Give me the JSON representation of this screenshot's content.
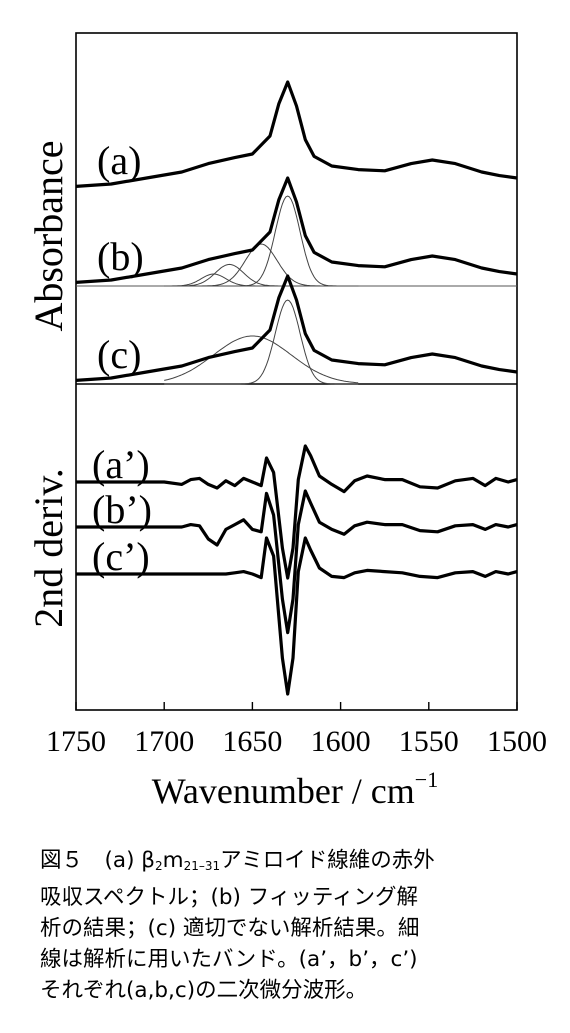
{
  "chart_data": {
    "type": "line",
    "xlabel": "Wavenumber / cm",
    "xlabel_sup": "−1",
    "xlim": [
      1750,
      1500
    ],
    "x_reversed": true,
    "xticks": [
      1750,
      1700,
      1650,
      1600,
      1550,
      1500
    ],
    "ylabel_top": "Absorbance",
    "ylabel_bottom": "2nd deriv.",
    "panels": [
      {
        "name": "Absorbance",
        "series": [
          {
            "label": "(a)",
            "x": [
              1750,
              1730,
              1710,
              1690,
              1675,
              1660,
              1650,
              1640,
              1635,
              1630,
              1625,
              1620,
              1615,
              1605,
              1590,
              1575,
              1560,
              1548,
              1535,
              1520,
              1510,
              1500
            ],
            "y": [
              0.03,
              0.05,
              0.1,
              0.15,
              0.22,
              0.27,
              0.3,
              0.45,
              0.72,
              0.9,
              0.7,
              0.42,
              0.28,
              0.2,
              0.17,
              0.16,
              0.22,
              0.25,
              0.22,
              0.15,
              0.12,
              0.1
            ]
          },
          {
            "label": "(b)",
            "x": [
              1750,
              1730,
              1710,
              1690,
              1675,
              1660,
              1650,
              1640,
              1635,
              1630,
              1625,
              1620,
              1615,
              1605,
              1590,
              1575,
              1560,
              1548,
              1535,
              1520,
              1510,
              1500
            ],
            "y": [
              0.03,
              0.05,
              0.1,
              0.15,
              0.22,
              0.27,
              0.3,
              0.45,
              0.72,
              0.9,
              0.7,
              0.42,
              0.28,
              0.2,
              0.17,
              0.16,
              0.22,
              0.25,
              0.22,
              0.15,
              0.12,
              0.1
            ],
            "bands": [
              {
                "center": 1630,
                "height": 0.75,
                "width": 7
              },
              {
                "center": 1645,
                "height": 0.35,
                "width": 9
              },
              {
                "center": 1663,
                "height": 0.18,
                "width": 8
              },
              {
                "center": 1672,
                "height": 0.1,
                "width": 7
              }
            ]
          },
          {
            "label": "(c)",
            "x": [
              1750,
              1730,
              1710,
              1690,
              1675,
              1660,
              1650,
              1640,
              1635,
              1630,
              1625,
              1620,
              1615,
              1605,
              1590,
              1575,
              1560,
              1548,
              1535,
              1520,
              1510,
              1500
            ],
            "y": [
              0.03,
              0.05,
              0.1,
              0.15,
              0.22,
              0.27,
              0.3,
              0.45,
              0.72,
              0.9,
              0.7,
              0.42,
              0.28,
              0.2,
              0.17,
              0.16,
              0.22,
              0.25,
              0.22,
              0.15,
              0.12,
              0.1
            ],
            "bands": [
              {
                "center": 1630,
                "height": 0.7,
                "width": 7
              },
              {
                "center": 1650,
                "height": 0.4,
                "width": 22
              }
            ]
          }
        ]
      },
      {
        "name": "2nd deriv.",
        "series": [
          {
            "label": "(a’)",
            "x": [
              1750,
              1720,
              1700,
              1690,
              1685,
              1680,
              1675,
              1670,
              1665,
              1660,
              1655,
              1650,
              1645,
              1642,
              1638,
              1633,
              1630,
              1627,
              1624,
              1620,
              1617,
              1612,
              1605,
              1598,
              1592,
              1585,
              1575,
              1565,
              1555,
              1545,
              1535,
              1525,
              1518,
              1512,
              1505,
              1500
            ],
            "y": [
              0,
              0,
              0,
              -0.02,
              0.02,
              0.03,
              -0.02,
              -0.05,
              0.01,
              -0.03,
              0.03,
              0,
              -0.03,
              0.2,
              0.08,
              -0.55,
              -0.8,
              -0.55,
              0.02,
              0.3,
              0.22,
              0.05,
              -0.02,
              -0.08,
              0.01,
              0.05,
              0.02,
              0.02,
              -0.04,
              -0.05,
              0.01,
              0.03,
              -0.03,
              0.03,
              0,
              0.02
            ]
          },
          {
            "label": "(b’)",
            "x": [
              1750,
              1720,
              1700,
              1690,
              1685,
              1680,
              1675,
              1670,
              1665,
              1660,
              1655,
              1650,
              1645,
              1642,
              1638,
              1633,
              1630,
              1627,
              1624,
              1620,
              1617,
              1612,
              1605,
              1598,
              1592,
              1585,
              1575,
              1565,
              1555,
              1545,
              1535,
              1525,
              1518,
              1512,
              1505,
              1500
            ],
            "y": [
              0,
              0,
              0,
              0,
              0.02,
              0.01,
              -0.1,
              -0.15,
              -0.02,
              0.02,
              0.06,
              -0.02,
              -0.04,
              0.28,
              0.1,
              -0.6,
              -0.88,
              -0.6,
              0.02,
              0.3,
              0.2,
              0.04,
              -0.02,
              -0.06,
              0.01,
              0.04,
              0.02,
              0.02,
              -0.03,
              -0.04,
              0.01,
              0.02,
              -0.02,
              0.02,
              0,
              0.02
            ]
          },
          {
            "label": "(c’)",
            "x": [
              1750,
              1720,
              1700,
              1690,
              1685,
              1680,
              1675,
              1670,
              1665,
              1660,
              1655,
              1650,
              1645,
              1642,
              1638,
              1633,
              1630,
              1627,
              1624,
              1620,
              1617,
              1612,
              1605,
              1598,
              1592,
              1585,
              1575,
              1565,
              1555,
              1545,
              1535,
              1525,
              1518,
              1512,
              1505,
              1500
            ],
            "y": [
              0,
              0,
              0,
              0,
              0,
              0,
              0,
              0,
              0,
              0.01,
              0.02,
              0,
              -0.03,
              0.3,
              0.15,
              -0.7,
              -1.0,
              -0.7,
              0.02,
              0.3,
              0.2,
              0.05,
              -0.02,
              -0.03,
              0.01,
              0.03,
              0.02,
              0.01,
              -0.02,
              -0.03,
              0.01,
              0.02,
              -0.02,
              0.02,
              0,
              0.02
            ]
          }
        ]
      }
    ],
    "grid": false,
    "legend": "none"
  },
  "caption": {
    "lines": [
      {
        "prefix": "図５　(a) β",
        "sub1": "2",
        "mid": "m",
        "sub2": "21–31",
        "suffix": "アミロイド線維の赤外"
      },
      {
        "text": "吸収スペクトル；(b) フィッティング解"
      },
      {
        "text": "析の結果；(c) 適切でない解析結果。細"
      },
      {
        "text": "線は解析に用いたバンド。(a’，b’，c’)"
      },
      {
        "text": "それぞれ(a,b,c)の二次微分波形。"
      }
    ]
  }
}
